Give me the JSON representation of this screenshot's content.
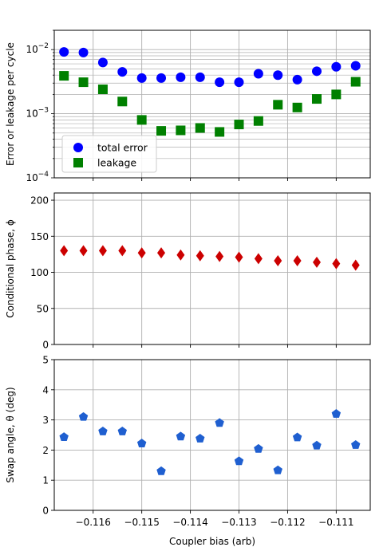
{
  "chart_data": [
    {
      "type": "scatter",
      "title": "",
      "xlabel": "",
      "ylabel": "Error or leakage per cycle",
      "yscale": "log",
      "ylim": [
        0.0001,
        0.02
      ],
      "xlim": [
        -0.1168,
        -0.1103
      ],
      "grid": "both",
      "legend_position": "lower-left",
      "yticks": [
        {
          "value": 0.0001,
          "base": "10",
          "exp": "−4"
        },
        {
          "value": 0.001,
          "base": "10",
          "exp": "−3"
        },
        {
          "value": 0.01,
          "base": "10",
          "exp": "−2"
        }
      ],
      "series": [
        {
          "name": "total error",
          "marker": "circle",
          "color": "#0000ff",
          "x": [
            -0.1166,
            -0.1162,
            -0.1158,
            -0.1154,
            -0.115,
            -0.1146,
            -0.1142,
            -0.1138,
            -0.1134,
            -0.113,
            -0.1126,
            -0.1122,
            -0.1118,
            -0.1114,
            -0.111,
            -0.1106
          ],
          "y": [
            0.0092,
            0.009,
            0.0063,
            0.0045,
            0.0036,
            0.0036,
            0.0037,
            0.0037,
            0.0031,
            0.0031,
            0.0042,
            0.004,
            0.0034,
            0.0046,
            0.0054,
            0.0056
          ]
        },
        {
          "name": "leakage",
          "marker": "square",
          "color": "#008000",
          "x": [
            -0.1166,
            -0.1162,
            -0.1158,
            -0.1154,
            -0.115,
            -0.1146,
            -0.1142,
            -0.1138,
            -0.1134,
            -0.113,
            -0.1126,
            -0.1122,
            -0.1118,
            -0.1114,
            -0.111,
            -0.1106
          ],
          "y": [
            0.0039,
            0.0031,
            0.0024,
            0.00155,
            0.0008,
            0.00054,
            0.00055,
            0.0006,
            0.00052,
            0.00068,
            0.00077,
            0.00138,
            0.00125,
            0.0017,
            0.002,
            0.00315
          ]
        }
      ]
    },
    {
      "type": "scatter",
      "title": "",
      "xlabel": "",
      "ylabel": "Conditional phase, ϕ",
      "ylim": [
        0,
        210
      ],
      "xlim": [
        -0.1168,
        -0.1103
      ],
      "grid": "both",
      "yticks": [
        "0",
        "50",
        "100",
        "150",
        "200"
      ],
      "series": [
        {
          "marker": "diamond",
          "color": "#cc0000",
          "x": [
            -0.1166,
            -0.1162,
            -0.1158,
            -0.1154,
            -0.115,
            -0.1146,
            -0.1142,
            -0.1138,
            -0.1134,
            -0.113,
            -0.1126,
            -0.1122,
            -0.1118,
            -0.1114,
            -0.111,
            -0.1106
          ],
          "y": [
            130,
            130,
            130,
            130,
            127,
            127,
            124,
            123,
            122,
            121,
            119,
            116,
            116,
            114,
            112,
            110
          ]
        }
      ]
    },
    {
      "type": "scatter",
      "title": "",
      "xlabel": "Coupler bias (arb)",
      "ylabel": "Swap angle, θ (deg)",
      "ylim": [
        0,
        5
      ],
      "xlim": [
        -0.1168,
        -0.1103
      ],
      "grid": "both",
      "yticks": [
        "0",
        "1",
        "2",
        "3",
        "4",
        "5"
      ],
      "xticks": [
        "−0.116",
        "−0.115",
        "−0.114",
        "−0.113",
        "−0.112",
        "−0.111"
      ],
      "series": [
        {
          "marker": "pentagon",
          "color": "#1f5fd0",
          "x": [
            -0.1166,
            -0.1162,
            -0.1158,
            -0.1154,
            -0.115,
            -0.1146,
            -0.1142,
            -0.1138,
            -0.1134,
            -0.113,
            -0.1126,
            -0.1122,
            -0.1118,
            -0.1114,
            -0.111,
            -0.1106
          ],
          "y": [
            2.43,
            3.1,
            2.62,
            2.62,
            2.22,
            1.3,
            2.45,
            2.38,
            2.9,
            1.63,
            2.04,
            1.33,
            2.42,
            2.15,
            3.2,
            2.17
          ]
        }
      ]
    }
  ]
}
